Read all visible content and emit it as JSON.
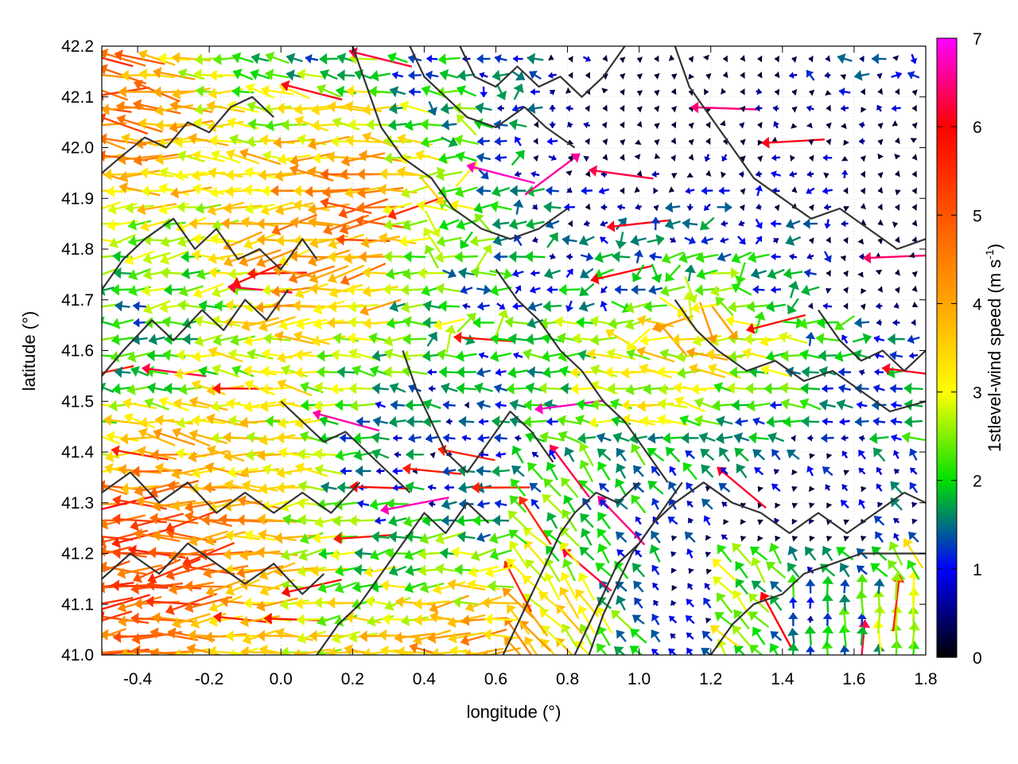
{
  "chart_data": {
    "type": "vector-field",
    "xlabel": "longitude (°)",
    "ylabel": "latitude (°)",
    "xlim": [
      -0.5,
      1.8
    ],
    "ylim": [
      41.0,
      42.2
    ],
    "xticks": [
      "-0.4",
      "-0.2",
      "0.0",
      "0.2",
      "0.4",
      "0.6",
      "0.8",
      "1.0",
      "1.2",
      "1.4",
      "1.6",
      "1.8"
    ],
    "xtick_values": [
      -0.4,
      -0.2,
      0.0,
      0.2,
      0.4,
      0.6,
      0.8,
      1.0,
      1.2,
      1.4,
      1.6,
      1.8
    ],
    "yticks": [
      "41.0",
      "41.1",
      "41.2",
      "41.3",
      "41.4",
      "41.5",
      "41.6",
      "41.7",
      "41.8",
      "41.9",
      "42.0",
      "42.1",
      "42.2"
    ],
    "ytick_values": [
      41.0,
      41.1,
      41.2,
      41.3,
      41.4,
      41.5,
      41.6,
      41.7,
      41.8,
      41.9,
      42.0,
      42.1,
      42.2
    ],
    "grid": true,
    "colorbar": {
      "label_main": "1stlevel-wind speed (m s",
      "label_sup": "-1",
      "label_end": ")",
      "range": [
        0,
        7
      ],
      "ticks": [
        "0",
        "1",
        "2",
        "3",
        "4",
        "5",
        "6",
        "7"
      ],
      "tick_values": [
        0,
        1,
        2,
        3,
        4,
        5,
        6,
        7
      ],
      "color_stops": [
        {
          "value": 0,
          "color": "#000000"
        },
        {
          "value": 1,
          "color": "#0000ff"
        },
        {
          "value": 2,
          "color": "#00e000"
        },
        {
          "value": 3,
          "color": "#ffff00"
        },
        {
          "value": 4,
          "color": "#ffa500"
        },
        {
          "value": 5,
          "color": "#ff5500"
        },
        {
          "value": 6,
          "color": "#ff0000"
        },
        {
          "value": 7,
          "color": "#ff00ff"
        }
      ]
    },
    "vectors": {
      "grid_dlon": 0.048,
      "grid_dlat": 0.0325,
      "dominant_direction": "westward (east wind), with north-westward flow in the south-east",
      "speed_range": [
        0,
        7
      ]
    },
    "contours": {
      "color": "#333333",
      "description": "terrain height contours",
      "lines": [
        [
          [
            -0.5,
            41.95
          ],
          [
            -0.45,
            41.98
          ],
          [
            -0.38,
            42.02
          ],
          [
            -0.32,
            42.0
          ],
          [
            -0.26,
            42.05
          ],
          [
            -0.2,
            42.03
          ],
          [
            -0.14,
            42.08
          ],
          [
            -0.08,
            42.1
          ],
          [
            -0.02,
            42.06
          ]
        ],
        [
          [
            -0.5,
            41.72
          ],
          [
            -0.44,
            41.78
          ],
          [
            -0.38,
            41.82
          ],
          [
            -0.3,
            41.86
          ],
          [
            -0.24,
            41.8
          ],
          [
            -0.18,
            41.84
          ],
          [
            -0.12,
            41.78
          ],
          [
            -0.06,
            41.8
          ],
          [
            0.0,
            41.76
          ],
          [
            0.06,
            41.82
          ],
          [
            0.1,
            41.78
          ]
        ],
        [
          [
            -0.5,
            41.55
          ],
          [
            -0.44,
            41.6
          ],
          [
            -0.36,
            41.66
          ],
          [
            -0.3,
            41.62
          ],
          [
            -0.22,
            41.68
          ],
          [
            -0.16,
            41.64
          ],
          [
            -0.1,
            41.7
          ],
          [
            -0.04,
            41.66
          ],
          [
            0.02,
            41.72
          ]
        ],
        [
          [
            -0.5,
            41.32
          ],
          [
            -0.42,
            41.36
          ],
          [
            -0.34,
            41.3
          ],
          [
            -0.26,
            41.34
          ],
          [
            -0.18,
            41.28
          ],
          [
            -0.1,
            41.32
          ],
          [
            -0.02,
            41.28
          ],
          [
            0.06,
            41.32
          ],
          [
            0.14,
            41.28
          ],
          [
            0.22,
            41.34
          ]
        ],
        [
          [
            -0.5,
            41.15
          ],
          [
            -0.42,
            41.2
          ],
          [
            -0.34,
            41.16
          ],
          [
            -0.26,
            41.22
          ],
          [
            -0.18,
            41.18
          ],
          [
            -0.1,
            41.14
          ],
          [
            -0.02,
            41.18
          ],
          [
            0.06,
            41.12
          ],
          [
            0.12,
            41.16
          ]
        ],
        [
          [
            0.1,
            41.0
          ],
          [
            0.16,
            41.06
          ],
          [
            0.22,
            41.1
          ],
          [
            0.28,
            41.16
          ],
          [
            0.34,
            41.22
          ],
          [
            0.4,
            41.28
          ],
          [
            0.46,
            41.24
          ],
          [
            0.52,
            41.3
          ],
          [
            0.58,
            41.26
          ]
        ],
        [
          [
            0.2,
            42.2
          ],
          [
            0.24,
            42.12
          ],
          [
            0.28,
            42.04
          ],
          [
            0.34,
            41.98
          ],
          [
            0.42,
            41.94
          ],
          [
            0.48,
            41.88
          ],
          [
            0.56,
            41.84
          ],
          [
            0.64,
            41.82
          ],
          [
            0.72,
            41.84
          ],
          [
            0.8,
            41.88
          ]
        ],
        [
          [
            0.36,
            42.2
          ],
          [
            0.4,
            42.14
          ],
          [
            0.46,
            42.1
          ],
          [
            0.52,
            42.06
          ],
          [
            0.6,
            42.04
          ],
          [
            0.68,
            42.08
          ],
          [
            0.74,
            42.04
          ],
          [
            0.82,
            42.0
          ]
        ],
        [
          [
            0.6,
            41.76
          ],
          [
            0.66,
            41.7
          ],
          [
            0.72,
            41.66
          ],
          [
            0.78,
            41.6
          ],
          [
            0.84,
            41.56
          ],
          [
            0.9,
            41.5
          ],
          [
            0.96,
            41.46
          ],
          [
            1.02,
            41.4
          ],
          [
            1.08,
            41.34
          ]
        ],
        [
          [
            0.86,
            41.0
          ],
          [
            0.9,
            41.08
          ],
          [
            0.94,
            41.14
          ],
          [
            0.98,
            41.2
          ],
          [
            1.04,
            41.26
          ],
          [
            1.1,
            41.3
          ],
          [
            1.18,
            41.34
          ],
          [
            1.26,
            41.3
          ],
          [
            1.34,
            41.28
          ],
          [
            1.42,
            41.24
          ],
          [
            1.5,
            41.28
          ],
          [
            1.58,
            41.24
          ],
          [
            1.66,
            41.28
          ],
          [
            1.74,
            41.32
          ],
          [
            1.8,
            41.3
          ]
        ],
        [
          [
            0.82,
            41.0
          ],
          [
            0.86,
            41.06
          ],
          [
            0.9,
            41.12
          ],
          [
            0.94,
            41.18
          ],
          [
            1.0,
            41.22
          ],
          [
            1.06,
            41.28
          ],
          [
            1.12,
            41.34
          ]
        ],
        [
          [
            1.2,
            41.0
          ],
          [
            1.26,
            41.06
          ],
          [
            1.32,
            41.1
          ],
          [
            1.4,
            41.12
          ],
          [
            1.46,
            41.16
          ],
          [
            1.54,
            41.18
          ],
          [
            1.62,
            41.2
          ],
          [
            1.7,
            41.2
          ],
          [
            1.8,
            41.2
          ]
        ],
        [
          [
            1.1,
            42.2
          ],
          [
            1.14,
            42.12
          ],
          [
            1.2,
            42.06
          ],
          [
            1.26,
            42.0
          ],
          [
            1.32,
            41.94
          ],
          [
            1.4,
            41.9
          ],
          [
            1.48,
            41.86
          ],
          [
            1.56,
            41.88
          ],
          [
            1.64,
            41.84
          ],
          [
            1.72,
            41.8
          ],
          [
            1.8,
            41.82
          ]
        ],
        [
          [
            1.1,
            41.7
          ],
          [
            1.16,
            41.64
          ],
          [
            1.22,
            41.6
          ],
          [
            1.3,
            41.56
          ],
          [
            1.38,
            41.58
          ],
          [
            1.46,
            41.54
          ],
          [
            1.54,
            41.56
          ],
          [
            1.62,
            41.52
          ],
          [
            1.7,
            41.48
          ],
          [
            1.8,
            41.5
          ]
        ],
        [
          [
            0.34,
            41.6
          ],
          [
            0.38,
            41.52
          ],
          [
            0.42,
            41.46
          ],
          [
            0.46,
            41.4
          ],
          [
            0.52,
            41.36
          ],
          [
            0.58,
            41.42
          ],
          [
            0.64,
            41.48
          ],
          [
            0.7,
            41.44
          ],
          [
            0.76,
            41.38
          ]
        ],
        [
          [
            0.0,
            41.5
          ],
          [
            0.06,
            41.46
          ],
          [
            0.12,
            41.42
          ],
          [
            0.18,
            41.44
          ],
          [
            0.24,
            41.4
          ],
          [
            0.3,
            41.36
          ],
          [
            0.36,
            41.32
          ]
        ],
        [
          [
            0.62,
            41.0
          ],
          [
            0.66,
            41.06
          ],
          [
            0.7,
            41.12
          ],
          [
            0.74,
            41.18
          ],
          [
            0.78,
            41.24
          ],
          [
            0.82,
            41.28
          ],
          [
            0.88,
            41.32
          ],
          [
            0.94,
            41.3
          ],
          [
            1.0,
            41.34
          ]
        ],
        [
          [
            1.5,
            41.68
          ],
          [
            1.56,
            41.62
          ],
          [
            1.62,
            41.58
          ],
          [
            1.68,
            41.6
          ],
          [
            1.74,
            41.56
          ],
          [
            1.8,
            41.6
          ]
        ],
        [
          [
            0.5,
            42.2
          ],
          [
            0.54,
            42.14
          ],
          [
            0.6,
            42.12
          ],
          [
            0.66,
            42.16
          ],
          [
            0.72,
            42.12
          ],
          [
            0.78,
            42.14
          ],
          [
            0.84,
            42.1
          ],
          [
            0.9,
            42.14
          ],
          [
            0.96,
            42.2
          ]
        ]
      ]
    }
  }
}
